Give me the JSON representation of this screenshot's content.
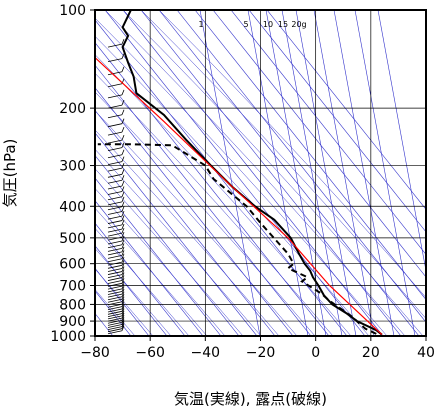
{
  "chart_data": {
    "type": "line",
    "xlabel": "気温(実線), 露点(破線)",
    "ylabel": "気圧(hPa)",
    "xlim": [
      -80,
      40
    ],
    "ylim": [
      1000,
      100
    ],
    "y_scale": "log",
    "x_ticks": [
      -80,
      -60,
      -40,
      -20,
      0,
      20,
      40
    ],
    "x_tick_labels": [
      "−80",
      "−60",
      "−40",
      "−20",
      "0",
      "20",
      "40"
    ],
    "y_ticks": [
      100,
      200,
      300,
      400,
      500,
      600,
      700,
      800,
      900,
      1000
    ],
    "y_tick_labels": [
      "100",
      "200",
      "300",
      "400",
      "500",
      "600",
      "700",
      "800",
      "900",
      "1000"
    ],
    "mixing_ratio_labels": [
      "1",
      "5",
      "10",
      "15",
      "20g"
    ],
    "grid": true,
    "colors": {
      "temperature": "#000000",
      "dewpoint": "#000000",
      "parcel": "#ff0000",
      "background_lines": "#3333cc",
      "grid": "#000000"
    },
    "series": [
      {
        "style": "solid",
        "points": [
          [
            24,
            990
          ],
          [
            22,
            960
          ],
          [
            15,
            900
          ],
          [
            11,
            850
          ],
          [
            6,
            800
          ],
          [
            3,
            750
          ],
          [
            1,
            700
          ],
          [
            -1,
            660
          ],
          [
            -2,
            630
          ],
          [
            -4,
            600
          ],
          [
            -6,
            560
          ],
          [
            -9,
            500
          ],
          [
            -15,
            440
          ],
          [
            -22,
            400
          ],
          [
            -30,
            350
          ],
          [
            -38,
            300
          ],
          [
            -47,
            250
          ],
          [
            -55,
            210
          ],
          [
            -65,
            180
          ],
          [
            -66,
            160
          ],
          [
            -68,
            145
          ],
          [
            -70,
            130
          ],
          [
            -68,
            120
          ],
          [
            -70,
            113
          ],
          [
            -67,
            100
          ]
        ]
      },
      {
        "style": "dashed",
        "points": [
          [
            22,
            985
          ],
          [
            18,
            950
          ],
          [
            13,
            870
          ],
          [
            5,
            780
          ],
          [
            2,
            740
          ],
          [
            -5,
            680
          ],
          [
            -3,
            660
          ],
          [
            -10,
            620
          ],
          [
            -8,
            600
          ],
          [
            -10,
            560
          ],
          [
            -20,
            450
          ],
          [
            -25,
            400
          ],
          [
            -37,
            330
          ],
          [
            -40,
            300
          ],
          [
            -52,
            260
          ],
          [
            -68,
            258
          ],
          [
            -79,
            258
          ]
        ]
      },
      {
        "style": "solid",
        "points": [
          [
            24,
            990
          ],
          [
            5,
            700
          ],
          [
            -10,
            500
          ],
          [
            -30,
            350
          ],
          [
            -55,
            220
          ],
          [
            -80,
            140
          ]
        ]
      }
    ]
  }
}
